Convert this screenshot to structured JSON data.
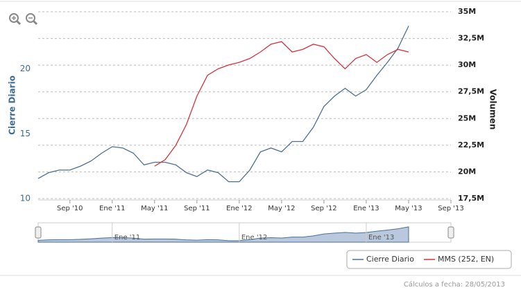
{
  "chart_data": {
    "type": "line",
    "y_label": "Cierre Diario",
    "y2_label": "Volumen",
    "x": [
      "2010-06",
      "2010-07",
      "2010-08",
      "2010-09",
      "2010-10",
      "2010-11",
      "2010-12",
      "2011-01",
      "2011-02",
      "2011-03",
      "2011-04",
      "2011-05",
      "2011-06",
      "2011-07",
      "2011-08",
      "2011-09",
      "2011-10",
      "2011-11",
      "2011-12",
      "2012-01",
      "2012-02",
      "2012-03",
      "2012-04",
      "2012-05",
      "2012-06",
      "2012-07",
      "2012-08",
      "2012-09",
      "2012-10",
      "2012-11",
      "2012-12",
      "2013-01",
      "2013-02",
      "2013-03",
      "2013-04",
      "2013-05"
    ],
    "series": [
      {
        "name": "Cierre Diario",
        "color": "#4a6f96",
        "values": [
          11.55,
          12.0,
          12.2,
          12.2,
          12.5,
          12.9,
          13.5,
          14.0,
          13.9,
          13.5,
          12.6,
          12.8,
          12.8,
          12.6,
          12.0,
          11.7,
          12.2,
          12.0,
          11.3,
          11.3,
          12.2,
          13.6,
          13.9,
          13.6,
          14.4,
          14.4,
          15.5,
          17.1,
          17.9,
          18.5,
          17.9,
          18.4,
          19.5,
          20.5,
          21.6,
          23.3
        ]
      },
      {
        "name": "MMS (252, EN)",
        "color": "#d9303c",
        "values": [
          null,
          null,
          null,
          null,
          null,
          null,
          null,
          null,
          null,
          null,
          null,
          12.5,
          13.0,
          14.1,
          15.7,
          17.9,
          19.5,
          20.0,
          20.3,
          20.5,
          20.8,
          21.3,
          21.9,
          22.1,
          21.3,
          21.5,
          21.9,
          21.7,
          20.8,
          20.0,
          20.8,
          21.1,
          20.5,
          21.1,
          21.5,
          21.3
        ]
      }
    ],
    "xlim": [
      "2010-06",
      "2013-09"
    ],
    "xticks": [
      {
        "value": "2010-09",
        "label": "Sep '10"
      },
      {
        "value": "2011-01",
        "label": "Ene '11"
      },
      {
        "value": "2011-05",
        "label": "May '11"
      },
      {
        "value": "2011-09",
        "label": "Sep '11"
      },
      {
        "value": "2012-01",
        "label": "Ene '12"
      },
      {
        "value": "2012-05",
        "label": "May '12"
      },
      {
        "value": "2012-09",
        "label": "Sep '12"
      },
      {
        "value": "2013-01",
        "label": "Ene '13"
      },
      {
        "value": "2013-05",
        "label": "May '13"
      },
      {
        "value": "2013-09",
        "label": "Sep '13"
      }
    ],
    "ylim": [
      10,
      24.4
    ],
    "yticks": [
      10,
      15,
      20
    ],
    "y2lim": [
      17500000,
      35000000
    ],
    "y2ticks": [
      {
        "value": 17500000,
        "label": "17,5M"
      },
      {
        "value": 20000000,
        "label": "20M"
      },
      {
        "value": 22500000,
        "label": "22,5M"
      },
      {
        "value": 25000000,
        "label": "25M"
      },
      {
        "value": 27500000,
        "label": "27,5M"
      },
      {
        "value": 30000000,
        "label": "30M"
      },
      {
        "value": 32500000,
        "label": "32,5M"
      },
      {
        "value": 35000000,
        "label": "35M"
      }
    ],
    "grid": true,
    "navigator_xticks": [
      {
        "value": "2011-01",
        "label": "Ene '11"
      },
      {
        "value": "2012-01",
        "label": "Ene '12"
      },
      {
        "value": "2013-01",
        "label": "Ene '13"
      }
    ]
  },
  "footer": "Cálculos a fecha: 28/05/2013"
}
